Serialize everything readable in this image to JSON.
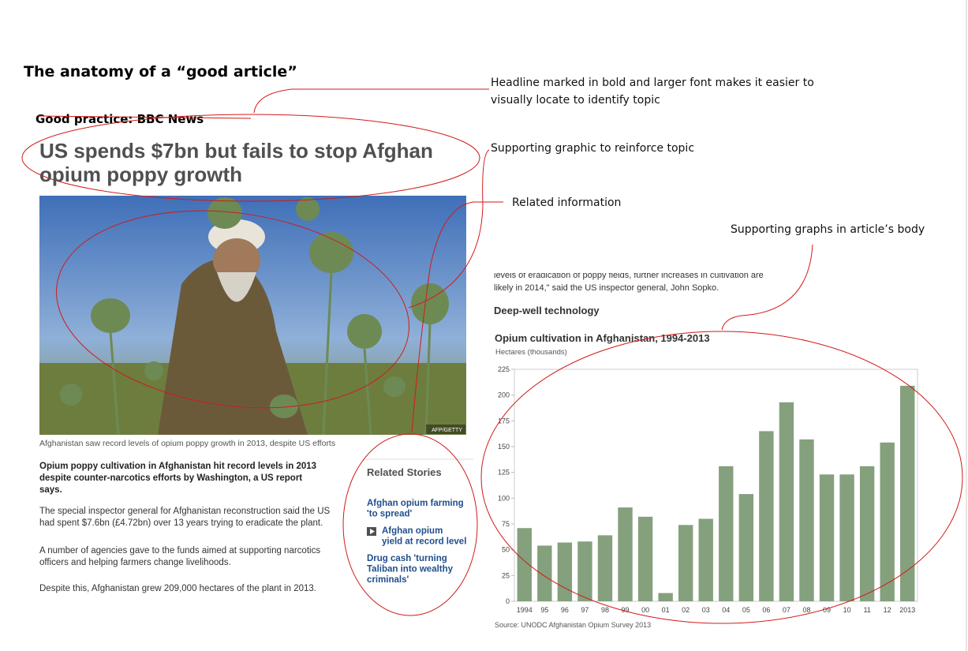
{
  "title": "The anatomy of a “good article”",
  "subtitle": "Good practice: BBC News",
  "annotations": [
    {
      "lines": [
        "Headline marked in bold and larger font makes it easier to",
        "visually locate to identify topic"
      ]
    },
    {
      "lines": [
        "Supporting graphic to reinforce topic"
      ]
    },
    {
      "lines": [
        "Related information"
      ]
    },
    {
      "lines": [
        "Supporting graphs in article’s body"
      ]
    }
  ],
  "article": {
    "headline": [
      "US spends $7bn but fails to stop Afghan",
      "opium poppy growth"
    ],
    "photo_credit": "AFP/GETTY",
    "caption": "Afghanistan saw record levels of opium poppy growth in 2013, despite US efforts",
    "lead": [
      "Opium poppy cultivation in Afghanistan hit record levels in 2013",
      "despite counter-narcotics efforts by Washington, a US report",
      "says."
    ],
    "paragraphs": [
      [
        "The special inspector general for Afghanistan reconstruction said the US",
        "had spent $7.6bn (£4.72bn) over 13 years trying to eradicate the plant."
      ],
      [
        "A number of agencies gave to the funds aimed at supporting narcotics",
        "officers and helping farmers change livelihoods."
      ],
      [
        "Despite this, Afghanistan grew 209,000 hectares of the plant in 2013."
      ]
    ],
    "related": {
      "heading": "Related Stories",
      "stories": [
        [
          "Afghan opium farming",
          "'to spread'"
        ],
        [
          "Afghan opium",
          "yield at record level"
        ],
        [
          "Drug cash 'turning",
          "Taliban into wealthy",
          "criminals'"
        ]
      ]
    },
    "snippet": [
      "levels of eradication of poppy fields, further increases in cultivation are",
      "likely in 2014,\" said the US inspector general, John Sopko."
    ],
    "section": "Deep-well technology"
  },
  "chart_data": {
    "type": "bar",
    "title": "Opium cultivation in Afghanistan, 1994-2013",
    "subtitle": "Hectares (thousands)",
    "categories": [
      "1994",
      "95",
      "96",
      "97",
      "98",
      "99",
      "00",
      "01",
      "02",
      "03",
      "04",
      "05",
      "06",
      "07",
      "08",
      "09",
      "10",
      "11",
      "12",
      "2013"
    ],
    "values": [
      71,
      54,
      57,
      58,
      64,
      91,
      82,
      8,
      74,
      80,
      131,
      104,
      165,
      193,
      157,
      123,
      123,
      131,
      154,
      209
    ],
    "color": "#84a07d",
    "ylim": [
      0,
      225
    ],
    "yticks": [
      0,
      25,
      50,
      75,
      100,
      125,
      150,
      175,
      200,
      225
    ],
    "grid": false,
    "source": "Source: UNODC Afghanistan Opium Survey 2013"
  }
}
